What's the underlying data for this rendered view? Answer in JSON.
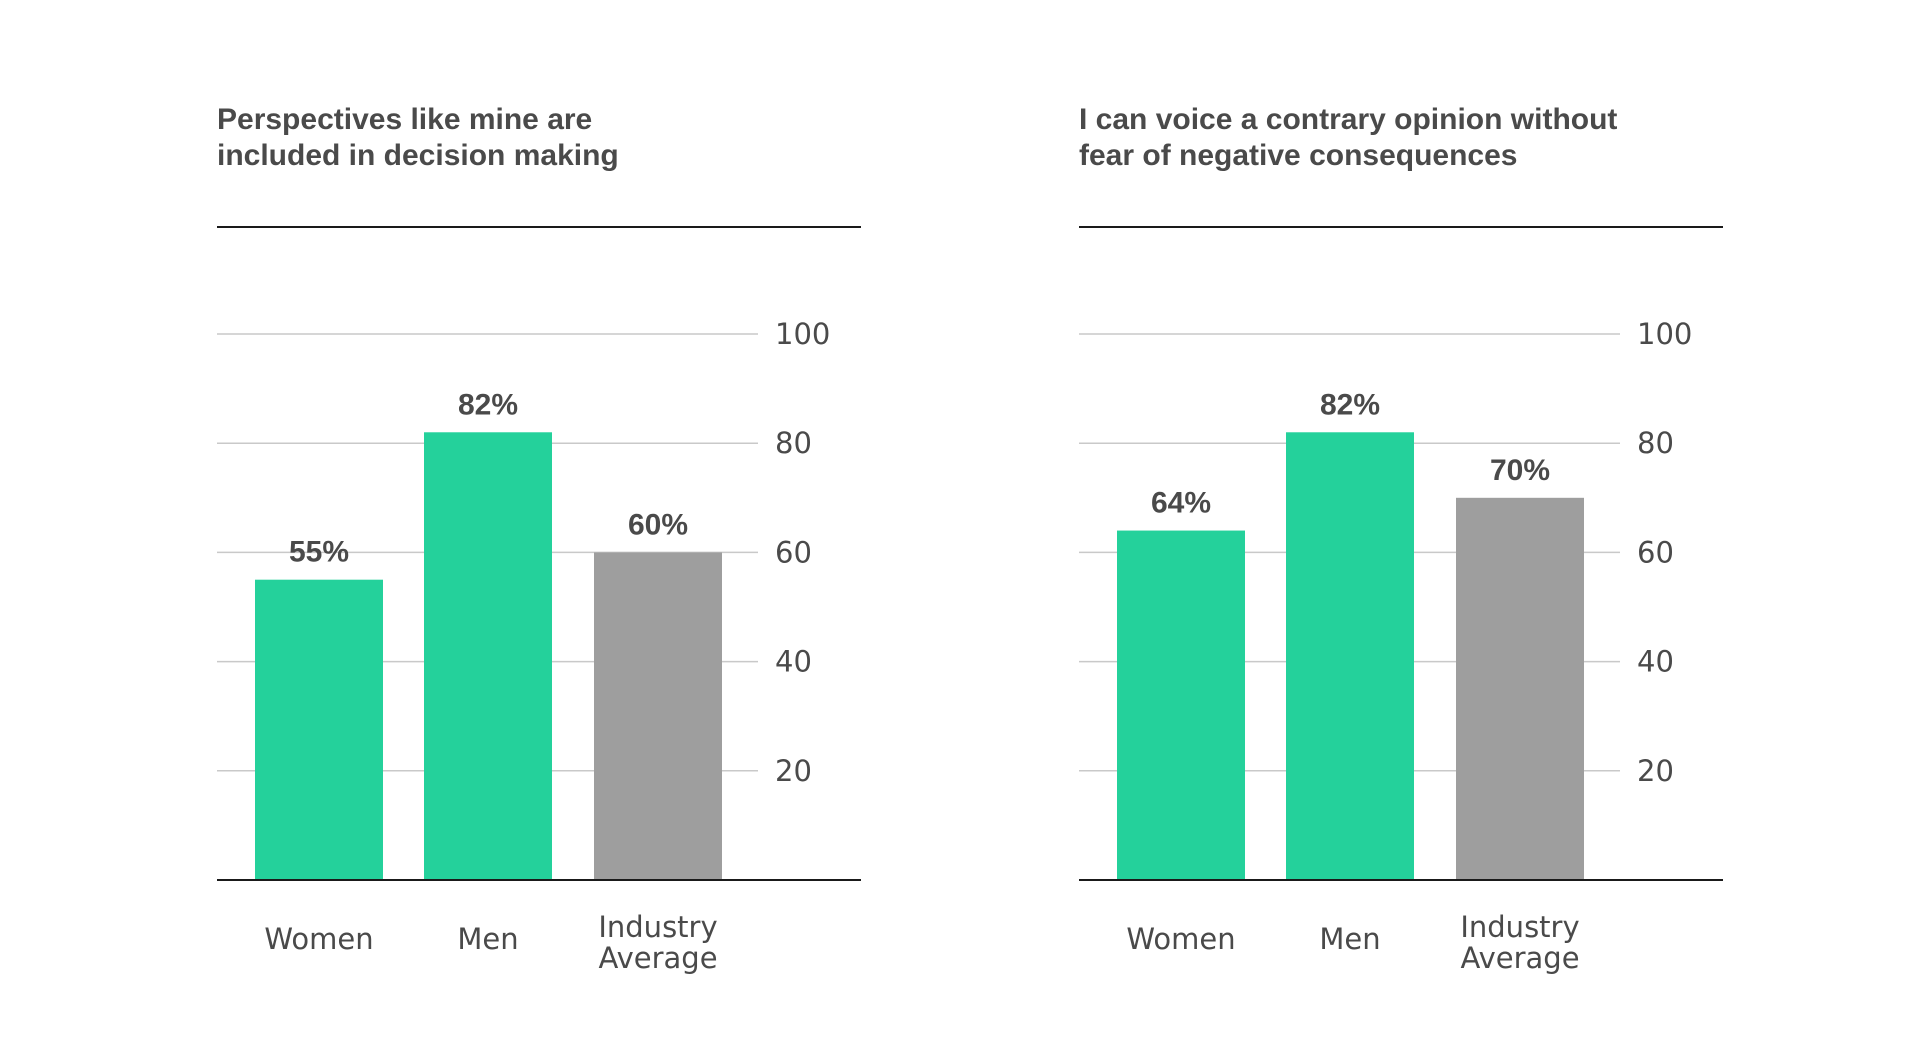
{
  "colors": {
    "bar_group": "#24d19b",
    "bar_average": "#9e9e9e",
    "text": "#4a4a4a",
    "rule": "#1a1a1a",
    "gridline": "#c9c9c9"
  },
  "chart_data": [
    {
      "type": "bar",
      "title_lines": [
        "Perspectives like mine are",
        "included in decision making"
      ],
      "categories": [
        [
          "Women"
        ],
        [
          "Men"
        ],
        [
          "Industry",
          "Average"
        ]
      ],
      "values": [
        55,
        82,
        60
      ],
      "value_labels": [
        "55%",
        "82%",
        "60%"
      ],
      "bar_colors": [
        "#24d19b",
        "#24d19b",
        "#9e9e9e"
      ],
      "ylim": [
        0,
        100
      ],
      "yticks": [
        20,
        40,
        60,
        80,
        100
      ],
      "ytick_labels": [
        "20",
        "40",
        "60",
        "80",
        "100"
      ],
      "y_axis_side": "right",
      "grid": true,
      "legend": "none"
    },
    {
      "type": "bar",
      "title_lines": [
        "I can voice a contrary opinion without",
        "fear of negative consequences"
      ],
      "categories": [
        [
          "Women"
        ],
        [
          "Men"
        ],
        [
          "Industry",
          "Average"
        ]
      ],
      "values": [
        64,
        82,
        70
      ],
      "value_labels": [
        "64%",
        "82%",
        "70%"
      ],
      "bar_colors": [
        "#24d19b",
        "#24d19b",
        "#9e9e9e"
      ],
      "ylim": [
        0,
        100
      ],
      "yticks": [
        20,
        40,
        60,
        80,
        100
      ],
      "ytick_labels": [
        "20",
        "40",
        "60",
        "80",
        "100"
      ],
      "y_axis_side": "right",
      "grid": true,
      "legend": "none"
    }
  ]
}
